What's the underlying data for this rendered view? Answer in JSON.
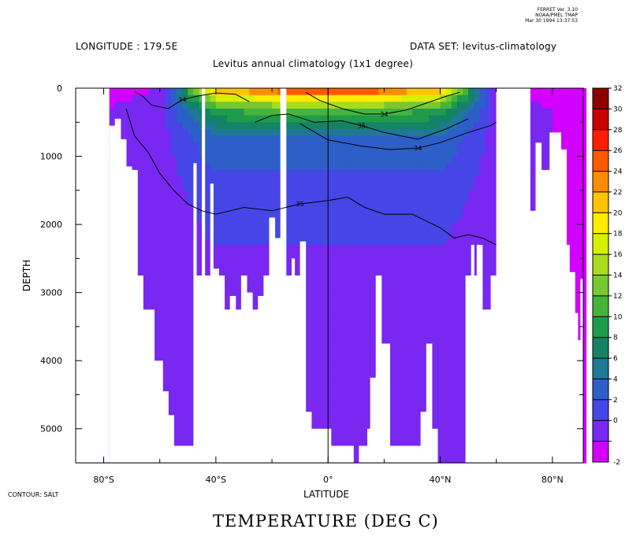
{
  "header": {
    "version": [
      "FERRET Ver. 3.10",
      "NOAA/PMEL TMAP",
      "Mar 30 1994 13:37:53"
    ],
    "longitude_label": "LONGITUDE : 179.5E",
    "dataset_label": "DATA SET: levitus-climatology",
    "subtitle": "Levitus annual climatology (1x1 degree)"
  },
  "footer": {
    "contour_note": "CONTOUR: SALT",
    "main_title": "TEMPERATURE (DEG C)"
  },
  "chart_data": {
    "type": "heatmap",
    "title": "Levitus annual climatology (1x1 degree)",
    "xlabel": "LATITUDE",
    "ylabel": "DEPTH",
    "x_range": [
      -90,
      91
    ],
    "y_range": [
      0,
      5500
    ],
    "x_ticks": [
      {
        "v": -80,
        "label": "80°S"
      },
      {
        "v": -40,
        "label": "40°S"
      },
      {
        "v": 0,
        "label": "0°"
      },
      {
        "v": 40,
        "label": "40°N"
      },
      {
        "v": 80,
        "label": "80°N"
      }
    ],
    "y_ticks": [
      {
        "v": 0,
        "label": "0"
      },
      {
        "v": 1000,
        "label": "1000"
      },
      {
        "v": 2000,
        "label": "2000"
      },
      {
        "v": 3000,
        "label": "3000"
      },
      {
        "v": 4000,
        "label": "4000"
      },
      {
        "v": 5000,
        "label": "5000"
      }
    ],
    "colorbar": {
      "levels": [
        "32",
        "30",
        "28",
        "26",
        "24",
        "22",
        "20",
        "18",
        "16",
        "14",
        "12",
        "10",
        "8",
        "6",
        "4",
        "2",
        "0",
        "-2"
      ],
      "colors": [
        "#8b0000",
        "#c80000",
        "#ff1e00",
        "#ff5a00",
        "#ff8c00",
        "#ffc300",
        "#ffec00",
        "#d7f000",
        "#a8dc1e",
        "#78c832",
        "#46b43c",
        "#1e9b4b",
        "#148264",
        "#1e7896",
        "#2d5fc8",
        "#4646e6",
        "#7828f0",
        "#d200ff"
      ]
    },
    "temperature_bands_by_depth": [
      {
        "depth": 0,
        "tropics_deg_c": 29,
        "subtropics_deg_c": 24,
        "high_lat_deg_c": 0
      },
      {
        "depth": 300,
        "tropics_deg_c": 14,
        "subtropics_deg_c": 12,
        "high_lat_deg_c": 1
      },
      {
        "depth": 700,
        "tropics_deg_c": 6,
        "subtropics_deg_c": 6,
        "high_lat_deg_c": 1
      },
      {
        "depth": 1200,
        "tropics_deg_c": 4,
        "subtropics_deg_c": 4,
        "high_lat_deg_c": 1
      },
      {
        "depth": 2300,
        "tropics_deg_c": 2,
        "subtropics_deg_c": 2,
        "high_lat_deg_c": 0.5
      },
      {
        "depth": 3500,
        "tropics_deg_c": 1.5,
        "subtropics_deg_c": 1.5,
        "high_lat_deg_c": 0.5
      }
    ],
    "bottom_profile": [
      {
        "lat": -78,
        "depth": 550
      },
      {
        "lat": -76,
        "depth": 450
      },
      {
        "lat": -74,
        "depth": 750
      },
      {
        "lat": -72,
        "depth": 1150
      },
      {
        "lat": -70,
        "depth": 1200
      },
      {
        "lat": -68,
        "depth": 2750
      },
      {
        "lat": -66,
        "depth": 3250
      },
      {
        "lat": -62,
        "depth": 4000
      },
      {
        "lat": -59,
        "depth": 4450
      },
      {
        "lat": -57,
        "depth": 4800
      },
      {
        "lat": -55,
        "depth": 5250
      },
      {
        "lat": -48,
        "depth": 1100
      },
      {
        "lat": -47,
        "depth": 2750
      },
      {
        "lat": -45,
        "depth": 0
      },
      {
        "lat": -44,
        "depth": 2750
      },
      {
        "lat": -42,
        "depth": 1400
      },
      {
        "lat": -41,
        "depth": 2650
      },
      {
        "lat": -39,
        "depth": 2750
      },
      {
        "lat": -37,
        "depth": 3250
      },
      {
        "lat": -35,
        "depth": 3050
      },
      {
        "lat": -33,
        "depth": 3250
      },
      {
        "lat": -31,
        "depth": 2750
      },
      {
        "lat": -29,
        "depth": 3000
      },
      {
        "lat": -27,
        "depth": 3250
      },
      {
        "lat": -25,
        "depth": 3050
      },
      {
        "lat": -23,
        "depth": 2750
      },
      {
        "lat": -21,
        "depth": 1900
      },
      {
        "lat": -19,
        "depth": 2200
      },
      {
        "lat": -17,
        "depth": 0
      },
      {
        "lat": -15,
        "depth": 2750
      },
      {
        "lat": -13,
        "depth": 2500
      },
      {
        "lat": -12,
        "depth": 2750
      },
      {
        "lat": -10,
        "depth": 2250
      },
      {
        "lat": -8,
        "depth": 4750
      },
      {
        "lat": -6,
        "depth": 5000
      },
      {
        "lat": 1,
        "depth": 5250
      },
      {
        "lat": 9,
        "depth": 5500
      },
      {
        "lat": 11,
        "depth": 5250
      },
      {
        "lat": 14,
        "depth": 5000
      },
      {
        "lat": 15,
        "depth": 4250
      },
      {
        "lat": 17,
        "depth": 2750
      },
      {
        "lat": 19,
        "depth": 3750
      },
      {
        "lat": 22,
        "depth": 5250
      },
      {
        "lat": 33,
        "depth": 4750
      },
      {
        "lat": 35,
        "depth": 3750
      },
      {
        "lat": 37,
        "depth": 5000
      },
      {
        "lat": 39,
        "depth": 5500
      },
      {
        "lat": 49,
        "depth": 2750
      },
      {
        "lat": 51,
        "depth": 2300
      },
      {
        "lat": 52,
        "depth": 2750
      },
      {
        "lat": 53,
        "depth": 2300
      },
      {
        "lat": 55,
        "depth": 3250
      },
      {
        "lat": 58,
        "depth": 2750
      },
      {
        "lat": 60,
        "depth": 0
      },
      {
        "lat": 72,
        "depth": 1800
      },
      {
        "lat": 74,
        "depth": 800
      },
      {
        "lat": 76,
        "depth": 1200
      },
      {
        "lat": 79,
        "depth": 650
      },
      {
        "lat": 83,
        "depth": 900
      },
      {
        "lat": 85,
        "depth": 2300
      },
      {
        "lat": 86,
        "depth": 2700
      },
      {
        "lat": 88,
        "depth": 3300
      },
      {
        "lat": 89,
        "depth": 3700
      },
      {
        "lat": 90,
        "depth": 2800
      }
    ],
    "salinity_contours": [
      {
        "label": "34",
        "points": [
          [
            -69,
            50
          ],
          [
            -66,
            120
          ],
          [
            -63,
            250
          ],
          [
            -57,
            300
          ],
          [
            -52,
            170
          ],
          [
            -47,
            120
          ],
          [
            -40,
            70
          ],
          [
            -33,
            90
          ],
          [
            -28,
            200
          ]
        ]
      },
      {
        "label": "35",
        "points": [
          [
            -72,
            300
          ],
          [
            -69,
            700
          ],
          [
            -64,
            950
          ],
          [
            -60,
            1250
          ],
          [
            -55,
            1500
          ],
          [
            -50,
            1700
          ],
          [
            -45,
            1800
          ],
          [
            -40,
            1850
          ],
          [
            -35,
            1800
          ],
          [
            -30,
            1750
          ],
          [
            -20,
            1800
          ],
          [
            -10,
            1700
          ],
          [
            0,
            1650
          ],
          [
            7,
            1600
          ],
          [
            13,
            1750
          ],
          [
            20,
            1850
          ],
          [
            30,
            1850
          ],
          [
            40,
            2050
          ],
          [
            45,
            2200
          ],
          [
            50,
            2150
          ],
          [
            55,
            2200
          ],
          [
            60,
            2300
          ]
        ]
      },
      {
        "label": "35",
        "points": [
          [
            -26,
            500
          ],
          [
            -20,
            400
          ],
          [
            -14,
            380
          ],
          [
            -5,
            500
          ],
          [
            5,
            480
          ],
          [
            12,
            550
          ],
          [
            20,
            650
          ],
          [
            32,
            750
          ],
          [
            42,
            600
          ],
          [
            50,
            450
          ]
        ]
      },
      {
        "label": "34",
        "points": [
          [
            -10,
            520
          ],
          [
            0,
            760
          ],
          [
            12,
            850
          ],
          [
            22,
            900
          ],
          [
            32,
            880
          ],
          [
            40,
            800
          ],
          [
            50,
            650
          ],
          [
            58,
            550
          ],
          [
            60,
            500
          ]
        ]
      },
      {
        "label": "34",
        "points": [
          [
            -8,
            60
          ],
          [
            -3,
            180
          ],
          [
            5,
            300
          ],
          [
            13,
            380
          ],
          [
            20,
            380
          ],
          [
            28,
            320
          ],
          [
            35,
            220
          ],
          [
            42,
            120
          ],
          [
            47,
            60
          ]
        ]
      }
    ]
  }
}
